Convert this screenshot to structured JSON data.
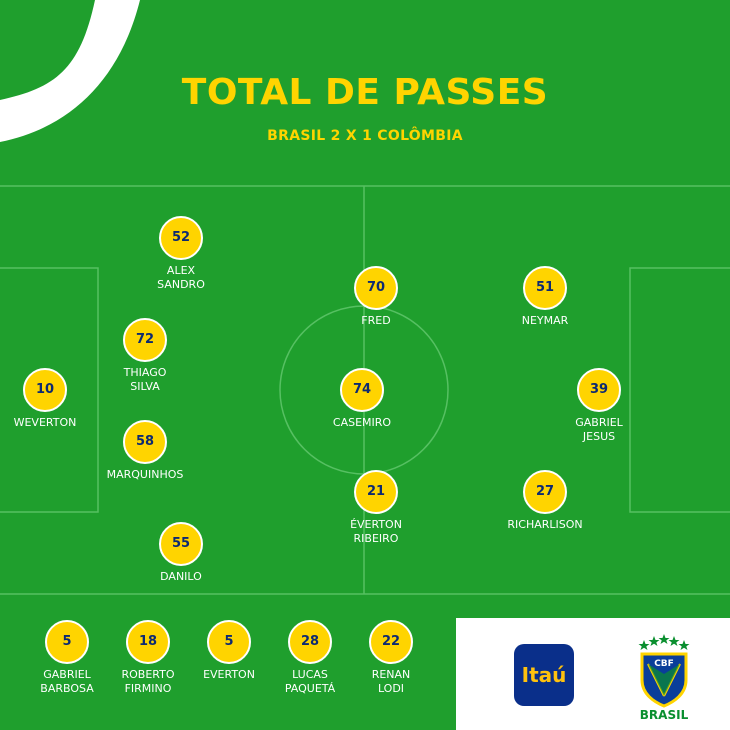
{
  "header": {
    "title": "TOTAL DE PASSES",
    "subtitle": "BRASIL 2 X 1 COLÔMBIA"
  },
  "starters": [
    {
      "name_line1": "ALEX",
      "name_line2": "SANDRO",
      "passes": "52"
    },
    {
      "name_line1": "THIAGO",
      "name_line2": "SILVA",
      "passes": "72"
    },
    {
      "name_line1": "WEVERTON",
      "name_line2": "",
      "passes": "10"
    },
    {
      "name_line1": "MARQUINHOS",
      "name_line2": "",
      "passes": "58"
    },
    {
      "name_line1": "DANILO",
      "name_line2": "",
      "passes": "55"
    },
    {
      "name_line1": "FRED",
      "name_line2": "",
      "passes": "70"
    },
    {
      "name_line1": "CASEMIRO",
      "name_line2": "",
      "passes": "74"
    },
    {
      "name_line1": "ÉVERTON",
      "name_line2": "RIBEIRO",
      "passes": "21"
    },
    {
      "name_line1": "NEYMAR",
      "name_line2": "",
      "passes": "51"
    },
    {
      "name_line1": "GABRIEL",
      "name_line2": "JESUS",
      "passes": "39"
    },
    {
      "name_line1": "RICHARLISON",
      "name_line2": "",
      "passes": "27"
    }
  ],
  "substitutes": [
    {
      "name_line1": "GABRIEL",
      "name_line2": "BARBOSA",
      "passes": "5"
    },
    {
      "name_line1": "ROBERTO",
      "name_line2": "FIRMINO",
      "passes": "18"
    },
    {
      "name_line1": "EVERTON",
      "name_line2": "",
      "passes": "5"
    },
    {
      "name_line1": "LUCAS",
      "name_line2": "PAQUETÁ",
      "passes": "28"
    },
    {
      "name_line1": "RENAN",
      "name_line2": "LODI",
      "passes": "22"
    }
  ],
  "sponsor": {
    "logo_text": "Itaú"
  },
  "federation": {
    "badge_text": "CBF",
    "label": "BRASIL"
  },
  "colors": {
    "field": "#1f9f2d",
    "accent": "#ffd400",
    "navy": "#0d2a72"
  }
}
